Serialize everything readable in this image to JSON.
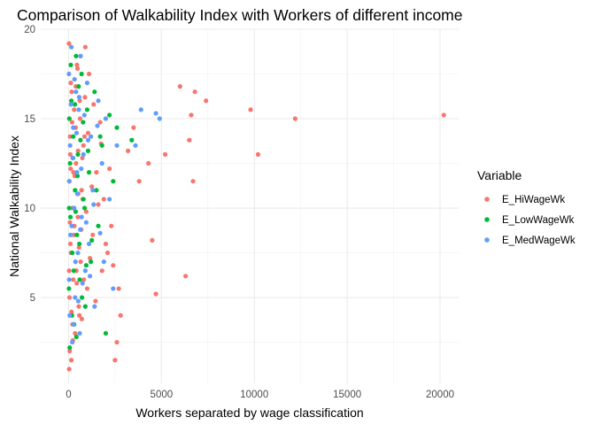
{
  "chart_data": {
    "type": "scatter",
    "title": "Comparison of Walkability Index with Workers of different income",
    "xlabel": "Workers separated by wage classification",
    "ylabel": "National Walkability Index",
    "xlim": [
      -1500,
      21000
    ],
    "ylim": [
      0.2,
      20.0
    ],
    "x_ticks": [
      0,
      5000,
      10000,
      15000,
      20000
    ],
    "y_ticks": [
      5,
      10,
      15,
      20
    ],
    "grid": true,
    "legend": {
      "title": "Variable",
      "placement": "right"
    },
    "series": [
      {
        "name": "E_HiWageWk",
        "color": "#F8766D",
        "points": [
          [
            20200,
            15.2
          ],
          [
            12200,
            15.0
          ],
          [
            10200,
            13.0
          ],
          [
            9800,
            15.5
          ],
          [
            7400,
            16.0
          ],
          [
            6800,
            16.5
          ],
          [
            6600,
            15.2
          ],
          [
            6500,
            13.8
          ],
          [
            6700,
            11.5
          ],
          [
            6300,
            6.2
          ],
          [
            6000,
            16.8
          ],
          [
            5200,
            13.0
          ],
          [
            4700,
            5.2
          ],
          [
            4500,
            8.2
          ],
          [
            4300,
            12.5
          ],
          [
            3800,
            11.5
          ],
          [
            3500,
            14.5
          ],
          [
            3200,
            13.2
          ],
          [
            2800,
            4.0
          ],
          [
            2700,
            5.5
          ],
          [
            2600,
            2.5
          ],
          [
            2500,
            1.5
          ],
          [
            2300,
            9.0
          ],
          [
            2100,
            7.5
          ],
          [
            1900,
            10.5
          ],
          [
            1800,
            6.5
          ],
          [
            1700,
            14.8
          ],
          [
            1500,
            12.0
          ],
          [
            1300,
            8.5
          ],
          [
            1100,
            17.5
          ],
          [
            1000,
            5.5
          ],
          [
            900,
            19.0
          ],
          [
            800,
            13.5
          ],
          [
            700,
            11.0
          ],
          [
            650,
            7.0
          ],
          [
            600,
            16.0
          ],
          [
            550,
            4.5
          ],
          [
            500,
            9.5
          ],
          [
            450,
            18.0
          ],
          [
            400,
            12.5
          ],
          [
            350,
            3.0
          ],
          [
            300,
            15.5
          ],
          [
            250,
            6.0
          ],
          [
            200,
            10.0
          ],
          [
            150,
            1.5
          ],
          [
            120,
            17.0
          ],
          [
            100,
            8.0
          ],
          [
            80,
            14.0
          ],
          [
            60,
            2.0
          ],
          [
            40,
            11.5
          ],
          [
            30,
            1.0
          ],
          [
            20,
            19.2
          ],
          [
            50,
            5.0
          ],
          [
            90,
            13.0
          ],
          [
            130,
            7.5
          ],
          [
            170,
            16.5
          ],
          [
            210,
            3.5
          ],
          [
            260,
            12.0
          ],
          [
            310,
            9.0
          ],
          [
            380,
            14.5
          ],
          [
            420,
            6.5
          ],
          [
            480,
            17.8
          ],
          [
            520,
            10.8
          ],
          [
            580,
            4.0
          ],
          [
            620,
            15.0
          ],
          [
            680,
            8.8
          ],
          [
            740,
            12.8
          ],
          [
            820,
            6.0
          ],
          [
            880,
            16.2
          ],
          [
            950,
            9.8
          ],
          [
            1050,
            14.2
          ],
          [
            1150,
            7.2
          ],
          [
            1250,
            11.2
          ],
          [
            1350,
            15.8
          ],
          [
            1450,
            4.8
          ],
          [
            1600,
            10.2
          ],
          [
            1750,
            13.6
          ],
          [
            2000,
            8.0
          ],
          [
            2200,
            12.2
          ],
          [
            2400,
            6.8
          ],
          [
            30,
            6.5
          ],
          [
            70,
            9.2
          ],
          [
            110,
            12.2
          ],
          [
            160,
            4.2
          ],
          [
            190,
            14.8
          ],
          [
            230,
            2.6
          ],
          [
            280,
            8.5
          ],
          [
            330,
            11.8
          ],
          [
            390,
            16.8
          ],
          [
            440,
            5.8
          ],
          [
            510,
            13.2
          ],
          [
            560,
            7.8
          ],
          [
            640,
            18.5
          ],
          [
            710,
            3.8
          ],
          [
            760,
            10.5
          ],
          [
            860,
            14.0
          ]
        ]
      },
      {
        "name": "E_LowWageWk",
        "color": "#00BA38",
        "points": [
          [
            2600,
            14.5
          ],
          [
            2400,
            11.5
          ],
          [
            2200,
            15.2
          ],
          [
            2000,
            3.0
          ],
          [
            1800,
            13.5
          ],
          [
            1600,
            9.0
          ],
          [
            1400,
            16.5
          ],
          [
            1200,
            7.0
          ],
          [
            1100,
            12.0
          ],
          [
            1000,
            15.5
          ],
          [
            900,
            4.5
          ],
          [
            800,
            10.5
          ],
          [
            700,
            17.5
          ],
          [
            600,
            6.0
          ],
          [
            500,
            13.0
          ],
          [
            450,
            8.5
          ],
          [
            400,
            18.5
          ],
          [
            350,
            11.0
          ],
          [
            300,
            3.5
          ],
          [
            250,
            14.0
          ],
          [
            200,
            7.5
          ],
          [
            150,
            16.0
          ],
          [
            100,
            9.5
          ],
          [
            80,
            12.5
          ],
          [
            60,
            2.2
          ],
          [
            40,
            15.0
          ],
          [
            20,
            5.5
          ],
          [
            30,
            10.0
          ],
          [
            120,
            18.0
          ],
          [
            180,
            4.0
          ],
          [
            240,
            12.8
          ],
          [
            280,
            6.5
          ],
          [
            340,
            15.8
          ],
          [
            380,
            9.8
          ],
          [
            420,
            2.8
          ],
          [
            480,
            11.8
          ],
          [
            540,
            16.8
          ],
          [
            580,
            8.0
          ],
          [
            640,
            13.8
          ],
          [
            720,
            5.0
          ],
          [
            780,
            14.8
          ],
          [
            860,
            10.0
          ],
          [
            950,
            6.8
          ],
          [
            1050,
            13.2
          ],
          [
            1250,
            8.2
          ],
          [
            1500,
            11.0
          ],
          [
            1700,
            14.0
          ],
          [
            3400,
            13.8
          ]
        ]
      },
      {
        "name": "E_MedWageWk",
        "color": "#619CFF",
        "points": [
          [
            4900,
            15.0
          ],
          [
            4700,
            15.3
          ],
          [
            3900,
            15.5
          ],
          [
            3600,
            13.5
          ],
          [
            2600,
            13.5
          ],
          [
            2400,
            5.5
          ],
          [
            2200,
            10.5
          ],
          [
            2000,
            15.0
          ],
          [
            1900,
            7.0
          ],
          [
            1800,
            12.5
          ],
          [
            1600,
            16.0
          ],
          [
            1400,
            4.5
          ],
          [
            1300,
            11.0
          ],
          [
            1200,
            14.0
          ],
          [
            1100,
            8.0
          ],
          [
            1000,
            17.0
          ],
          [
            900,
            6.5
          ],
          [
            800,
            13.0
          ],
          [
            700,
            9.5
          ],
          [
            650,
            18.5
          ],
          [
            600,
            3.0
          ],
          [
            550,
            15.5
          ],
          [
            500,
            7.5
          ],
          [
            450,
            12.0
          ],
          [
            400,
            16.5
          ],
          [
            350,
            5.0
          ],
          [
            300,
            10.0
          ],
          [
            250,
            14.5
          ],
          [
            200,
            2.5
          ],
          [
            150,
            19.0
          ],
          [
            100,
            8.5
          ],
          [
            80,
            13.5
          ],
          [
            60,
            4.0
          ],
          [
            40,
            11.5
          ],
          [
            20,
            17.5
          ],
          [
            30,
            6.0
          ],
          [
            130,
            15.8
          ],
          [
            170,
            9.0
          ],
          [
            220,
            12.8
          ],
          [
            270,
            3.5
          ],
          [
            320,
            17.2
          ],
          [
            370,
            7.0
          ],
          [
            430,
            14.2
          ],
          [
            470,
            10.8
          ],
          [
            520,
            4.8
          ],
          [
            570,
            16.2
          ],
          [
            630,
            8.8
          ],
          [
            680,
            12.2
          ],
          [
            750,
            5.8
          ],
          [
            850,
            15.2
          ],
          [
            950,
            9.2
          ],
          [
            1050,
            13.8
          ],
          [
            1150,
            6.2
          ],
          [
            1350,
            10.2
          ],
          [
            1550,
            14.6
          ],
          [
            1700,
            8.6
          ]
        ]
      }
    ]
  }
}
